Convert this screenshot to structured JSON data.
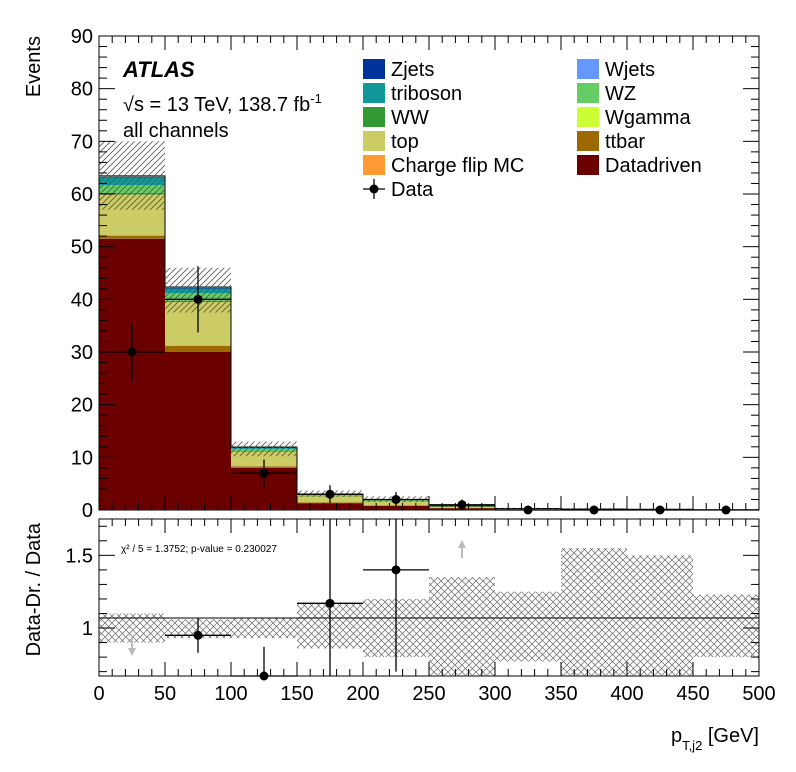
{
  "chart_data": {
    "type": "bar",
    "subtype": "stacked-histogram-with-ratio",
    "experiment": "ATLAS",
    "energy_label": "√s = 13 TeV, 138.7 fb",
    "energy_sup": "-1",
    "channel": "all channels",
    "xlabel_main": "p",
    "xlabel_sub": "T,j2",
    "xlabel_unit": " [GeV]",
    "ylabel_top": "Events",
    "ylabel_bottom": "Data-Dr. / Data",
    "xlim": [
      0,
      500
    ],
    "ylim_top": [
      0,
      90
    ],
    "ylim_bottom": [
      0.67,
      1.75
    ],
    "x_ticks": [
      0,
      50,
      100,
      150,
      200,
      250,
      300,
      350,
      400,
      450,
      500
    ],
    "y_ticks_top": [
      0,
      10,
      20,
      30,
      40,
      50,
      60,
      70,
      80,
      90
    ],
    "y_ticks_bottom": [
      1,
      1.5
    ],
    "bin_edges": [
      0,
      50,
      100,
      150,
      200,
      250,
      300,
      350,
      400,
      450,
      500
    ],
    "stack_order": [
      "Datadriven",
      "ttbar",
      "top",
      "WW",
      "WZ",
      "triboson",
      "Zjets",
      "Wjets",
      "Wgamma",
      "Charge flip MC"
    ],
    "series": [
      {
        "name": "Datadriven",
        "color": "#6b0000",
        "values": [
          51.5,
          30.0,
          8.0,
          1.3,
          0.8,
          0.35,
          0.15,
          0.1,
          0.05,
          0.05
        ]
      },
      {
        "name": "ttbar",
        "color": "#9c6a00",
        "values": [
          0.6,
          1.2,
          0.3,
          0.15,
          0.1,
          0.05,
          0.0,
          0.0,
          0.0,
          0.0
        ]
      },
      {
        "name": "top",
        "color": "#cccc66",
        "values": [
          7.8,
          8.3,
          2.8,
          1.2,
          0.8,
          0.3,
          0.1,
          0.05,
          0.05,
          0.0
        ]
      },
      {
        "name": "WW",
        "color": "#339933",
        "values": [
          0.3,
          0.2,
          0.1,
          0.05,
          0.05,
          0.02,
          0.0,
          0.0,
          0.0,
          0.0
        ]
      },
      {
        "name": "WZ",
        "color": "#66cc66",
        "values": [
          1.5,
          1.5,
          0.4,
          0.2,
          0.15,
          0.05,
          0.02,
          0.02,
          0.02,
          0.0
        ]
      },
      {
        "name": "triboson",
        "color": "#119999",
        "values": [
          1.5,
          0.9,
          0.3,
          0.1,
          0.08,
          0.03,
          0.02,
          0.02,
          0.02,
          0.0
        ]
      },
      {
        "name": "Zjets",
        "color": "#003399",
        "values": [
          0.05,
          0.05,
          0.02,
          0.0,
          0.0,
          0.0,
          0.0,
          0.0,
          0.0,
          0.0
        ]
      },
      {
        "name": "Wjets",
        "color": "#6699ff",
        "values": [
          0.1,
          0.1,
          0.05,
          0.0,
          0.0,
          0.0,
          0.0,
          0.0,
          0.0,
          0.0
        ]
      },
      {
        "name": "Wgamma",
        "color": "#ccff33",
        "values": [
          0.05,
          0.05,
          0.0,
          0.0,
          0.0,
          0.0,
          0.0,
          0.0,
          0.0,
          0.0
        ]
      },
      {
        "name": "Charge flip MC",
        "color": "#ff9933",
        "values": [
          0.05,
          0.05,
          0.0,
          0.0,
          0.0,
          0.0,
          0.0,
          0.0,
          0.0,
          0.0
        ]
      }
    ],
    "uncertainty_band_top": {
      "low": [
        57.0,
        37.5,
        10.2,
        2.5,
        1.5,
        0.6,
        0.2,
        0.15,
        0.1,
        0.05
      ],
      "high": [
        70.0,
        46.0,
        13.0,
        3.7,
        2.6,
        1.1,
        0.4,
        0.3,
        0.2,
        0.1
      ]
    },
    "data": {
      "x": [
        25,
        75,
        125,
        175,
        225,
        275,
        325,
        375,
        425,
        475
      ],
      "y": [
        30,
        40,
        7,
        3,
        2,
        1,
        0,
        0,
        0,
        0
      ],
      "yerr": [
        5.5,
        6.3,
        2.6,
        1.7,
        1.4,
        1.0,
        0,
        0,
        0,
        0
      ]
    },
    "ratio": {
      "x": [
        75,
        125,
        175,
        225
      ],
      "y": [
        0.95,
        0.67,
        1.17,
        1.4
      ],
      "yerr_up": [
        0.12,
        0.2,
        0.6,
        0.7
      ],
      "yerr_down": [
        0.12,
        0.3,
        0.6,
        0.7
      ],
      "band_low": [
        0.9,
        0.93,
        0.93,
        0.86,
        0.8,
        0.67,
        0.77,
        0.67,
        0.67,
        0.8
      ],
      "band_high": [
        1.1,
        1.06,
        1.07,
        1.17,
        1.2,
        1.35,
        1.25,
        1.55,
        1.5,
        1.23
      ],
      "offscale_arrows": [
        {
          "x": 25,
          "direction": "down"
        },
        {
          "x": 275,
          "direction": "up"
        }
      ]
    },
    "stat_text": "χ² / 5 = 1.3752; p-value = 0.230027",
    "legend": {
      "position": "top-right",
      "col1": [
        "Zjets",
        "triboson",
        "WW",
        "top",
        "Charge flip MC",
        "Data"
      ],
      "col2": [
        "Wjets",
        "WZ",
        "Wgamma",
        "ttbar",
        "Datadriven"
      ]
    }
  }
}
